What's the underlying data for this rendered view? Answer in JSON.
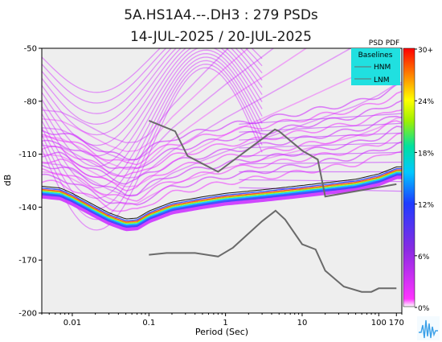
{
  "chart_data": {
    "type": "heatmap",
    "title": "5A.HS1A4.--.DH3 : 279 PSDs",
    "subtitle": "14-JUL-2025 / 20-JUL-2025",
    "xlabel": "Period (Sec)",
    "ylabel": "dB",
    "x_scale": "log",
    "xlim": [
      0.004,
      200
    ],
    "ylim": [
      -200,
      -50
    ],
    "x_ticks": [
      {
        "value": 0.01,
        "label": "0.01"
      },
      {
        "value": 0.1,
        "label": "0.1"
      },
      {
        "value": 1,
        "label": "1"
      },
      {
        "value": 10,
        "label": "10"
      },
      {
        "value": 100,
        "label": "100"
      },
      {
        "value": 170,
        "label": "170"
      }
    ],
    "y_ticks": [
      {
        "value": -50,
        "label": "-50"
      },
      {
        "value": -80,
        "label": "-80"
      },
      {
        "value": -110,
        "label": "-110"
      },
      {
        "value": -140,
        "label": "-140"
      },
      {
        "value": -170,
        "label": "-170"
      },
      {
        "value": -200,
        "label": "-200"
      }
    ],
    "colorbar": {
      "title": "PSD PDF",
      "ticks": [
        "30+",
        "24%",
        "18%",
        "12%",
        "6%",
        "0%"
      ]
    },
    "legend": {
      "title": "Baselines",
      "entries": [
        "HNM",
        "LNM"
      ],
      "placement": "top-right"
    },
    "hnm": [
      [
        0.1,
        -91
      ],
      [
        0.22,
        -97
      ],
      [
        0.32,
        -111
      ],
      [
        0.8,
        -120
      ],
      [
        3.8,
        -98
      ],
      [
        4.4,
        -96
      ],
      [
        5,
        -97
      ],
      [
        10,
        -108
      ],
      [
        16,
        -113
      ],
      [
        20,
        -134
      ],
      [
        170,
        -127
      ]
    ],
    "lnm": [
      [
        0.1,
        -167
      ],
      [
        0.17,
        -166
      ],
      [
        0.4,
        -166
      ],
      [
        0.8,
        -168
      ],
      [
        1.25,
        -163
      ],
      [
        3,
        -148
      ],
      [
        4.5,
        -142
      ],
      [
        6,
        -147
      ],
      [
        10,
        -161
      ],
      [
        15,
        -164
      ],
      [
        20,
        -176
      ],
      [
        35,
        -185
      ],
      [
        60,
        -188
      ],
      [
        80,
        -188
      ],
      [
        100,
        -186
      ],
      [
        170,
        -186
      ]
    ],
    "mode_curve": [
      [
        0.004,
        -130
      ],
      [
        0.007,
        -131
      ],
      [
        0.01,
        -134
      ],
      [
        0.02,
        -141
      ],
      [
        0.03,
        -145
      ],
      [
        0.05,
        -148.5
      ],
      [
        0.07,
        -148
      ],
      [
        0.1,
        -144
      ],
      [
        0.2,
        -139
      ],
      [
        0.5,
        -136
      ],
      [
        1,
        -134
      ],
      [
        3,
        -132
      ],
      [
        8,
        -130
      ],
      [
        20,
        -128
      ],
      [
        50,
        -126
      ],
      [
        100,
        -123
      ],
      [
        170,
        -119
      ]
    ]
  }
}
